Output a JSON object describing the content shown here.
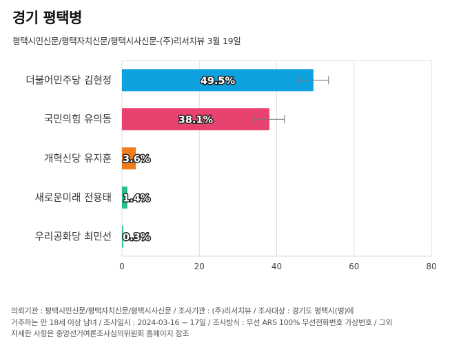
{
  "title": "경기 평택병",
  "subtitle": "평택시민신문/평택자치신문/평택시사신문-(주)리서치뷰 3월 19일",
  "chart_data": {
    "type": "bar",
    "orientation": "horizontal",
    "categories": [
      "더불어민주당 김현정",
      "국민의힘 유의동",
      "개혁신당 유지훈",
      "새로운미래 전용태",
      "우리공화당 최민선"
    ],
    "values": [
      49.5,
      38.1,
      3.6,
      1.4,
      0.3
    ],
    "value_labels": [
      "49.5%",
      "38.1%",
      "3.6%",
      "1.4%",
      "0.3%"
    ],
    "error_margin": [
      3.9,
      3.9,
      null,
      null,
      null
    ],
    "colors": [
      "#0ea1e0",
      "#e8426e",
      "#f07c1e",
      "#2bbf8c",
      "#2bbf8c"
    ],
    "xlim": [
      0,
      80
    ],
    "xticks": [
      "0",
      "20",
      "40",
      "60",
      "80"
    ],
    "grid": true
  },
  "footer": {
    "lines": [
      "의뢰기관 : 평택시민신문/평택자치신문/평택시사신문 / 조사기관 : (주)리서치뷰 / 조사대상 : 경기도 평택시(병)에",
      "거주하는 만 18세 이상 남녀 / 조사일시 : 2024-03-16 ~ 17일 / 조사방식 : 무선 ARS 100% 무선전화번호 가상번호 / 그외",
      "자세한 사항은 중앙선거여론조사심의위원회 홈페이지 참조"
    ]
  }
}
